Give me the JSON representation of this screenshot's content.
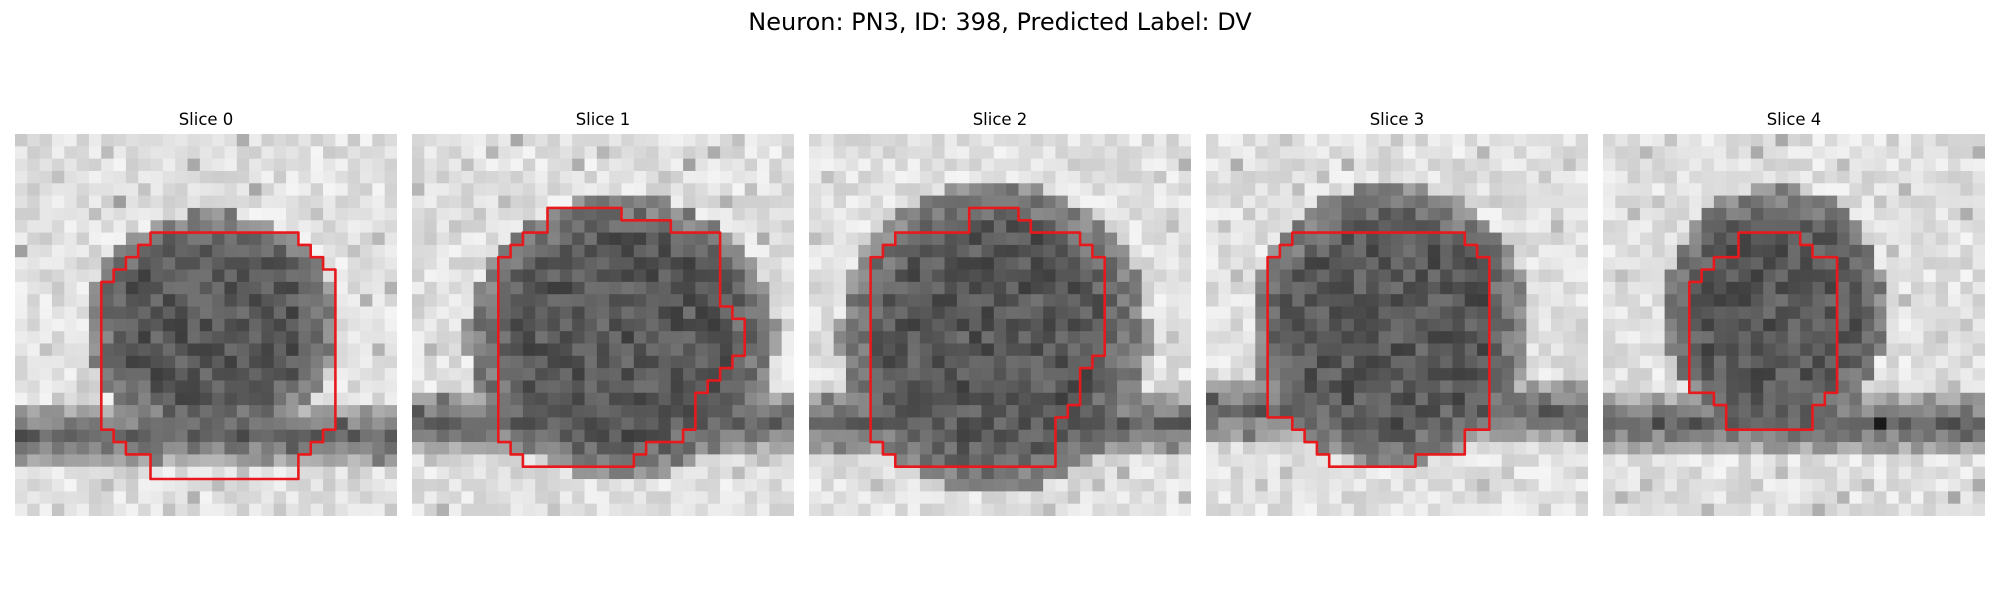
{
  "figure": {
    "title": "Neuron: PN3, ID: 398, Predicted Label: DV",
    "outline_color": "#e8191c",
    "colormap": "grayscale"
  },
  "panels": [
    {
      "title": "Slice 0",
      "outline": "cell-boundary"
    },
    {
      "title": "Slice 1",
      "outline": "cell-boundary"
    },
    {
      "title": "Slice 2",
      "outline": "cell-boundary"
    },
    {
      "title": "Slice 3",
      "outline": "cell-boundary"
    },
    {
      "title": "Slice 4",
      "outline": "cell-boundary"
    }
  ]
}
